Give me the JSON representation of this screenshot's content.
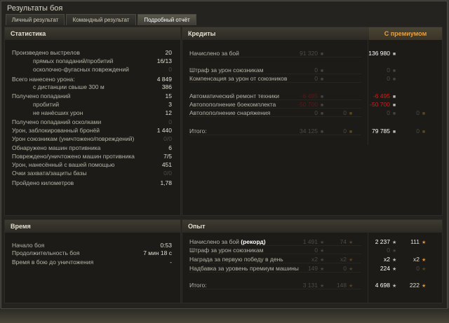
{
  "window": {
    "title": "Результаты боя"
  },
  "tabs": [
    {
      "label": "Личный результат"
    },
    {
      "label": "Командный результат"
    },
    {
      "label": "Подробный отчёт",
      "active": true
    }
  ],
  "stats": {
    "title": "Статистика",
    "rows": [
      {
        "label": "Произведено выстрелов",
        "value": "20"
      },
      {
        "label": "прямых попаданий/пробитий",
        "value": "16/13",
        "indent": true
      },
      {
        "label": "осколочно-фугасных повреждений",
        "value": "0",
        "indent": true,
        "dim": true
      },
      {
        "label": "Всего нанесено урона:",
        "value": "4 849"
      },
      {
        "label": "с дистанции свыше 300 м",
        "value": "386",
        "indent": true
      },
      {
        "label": "Получено попаданий",
        "value": "15"
      },
      {
        "label": "пробитий",
        "value": "3",
        "indent": true
      },
      {
        "label": "не нанёсших урон",
        "value": "12",
        "indent": true
      },
      {
        "label": "Получено попаданий осколками",
        "value": "0",
        "dim": true
      },
      {
        "label": "Урон, заблокированный бронёй",
        "value": "1 440"
      },
      {
        "label": "Урон союзникам (уничтожено/повреждений)",
        "value": "0/0",
        "dim": true
      },
      {
        "label": "Обнаружено машин противника",
        "value": "6"
      },
      {
        "label": "Повреждено/уничтожено машин противника",
        "value": "7/5"
      },
      {
        "label": "Урон, нанесённый с вашей помощью",
        "value": "451"
      },
      {
        "label": "Очки захвата/защиты базы",
        "value": "0/0",
        "dim": true
      },
      {
        "label": "Пройдено километров",
        "value": "1,78"
      }
    ]
  },
  "credits": {
    "title": "Кредиты",
    "premium_label": "С премиумом",
    "rows": [
      {
        "label": "Начислено за бой",
        "base": "91 320",
        "base_gold": "",
        "prem": "136 980",
        "prem_gold": ""
      },
      {
        "label": "Штраф за урон союзникам",
        "base": "0",
        "base_gold": "",
        "prem": "0",
        "prem_gold": "",
        "pdim": true
      },
      {
        "label": "Компенсация за урон от союзников",
        "base": "0",
        "base_gold": "",
        "prem": "0",
        "prem_gold": "",
        "pdim": true
      },
      {
        "label": "Автоматический ремонт техники",
        "base": "-6 495",
        "base_gold": "",
        "prem": "-6 495",
        "prem_gold": "",
        "red": true
      },
      {
        "label": "Автопополнение боекомплекта",
        "base": "-50 700",
        "base_gold": "",
        "prem": "-50 700",
        "prem_gold": "",
        "red": true
      },
      {
        "label": "Автопополнение снаряжения",
        "base": "0",
        "base_gold": "0",
        "prem": "0",
        "prem_gold": "0",
        "pdim": true
      },
      {
        "label": "Итого:",
        "base": "34 125",
        "base_gold": "0",
        "prem": "79 785",
        "prem_gold": "0"
      }
    ],
    "icons": {
      "credit": "silver-coin-icon",
      "gold": "gold-coin-icon"
    }
  },
  "time": {
    "title": "Время",
    "rows": [
      {
        "label": "Начало боя",
        "value": "0:53"
      },
      {
        "label": "Продолжительность боя",
        "value": "7 мин 18 с"
      },
      {
        "label": "Время в бою до уничтожения",
        "value": "-"
      }
    ]
  },
  "experience": {
    "title": "Опыт",
    "rows": [
      {
        "label": "Начислено за бой",
        "label_bold": "(рекорд)",
        "base": "1 491",
        "base_free": "74",
        "prem": "2 237",
        "prem_free": "111"
      },
      {
        "label": "Штраф за урон союзникам",
        "base": "0",
        "base_free": "",
        "prem": "0",
        "prem_free": "",
        "pdim": true
      },
      {
        "label": "Награда за первую победу в день",
        "base": "x2",
        "base_free": "x2",
        "prem": "x2",
        "prem_free": "x2"
      },
      {
        "label": "Надбавка за уровень премиум машины",
        "base": "149",
        "base_free": "0",
        "prem": "224",
        "prem_free": "0",
        "pfdim": true
      },
      {
        "label": "Итого:",
        "base": "3 131",
        "base_free": "148",
        "prem": "4 698",
        "prem_free": "222"
      }
    ],
    "icons": {
      "xp": "star-icon",
      "free_xp": "free-xp-star-icon"
    }
  },
  "colors": {
    "accent": "#e8a040",
    "negative": "#d0201a"
  }
}
